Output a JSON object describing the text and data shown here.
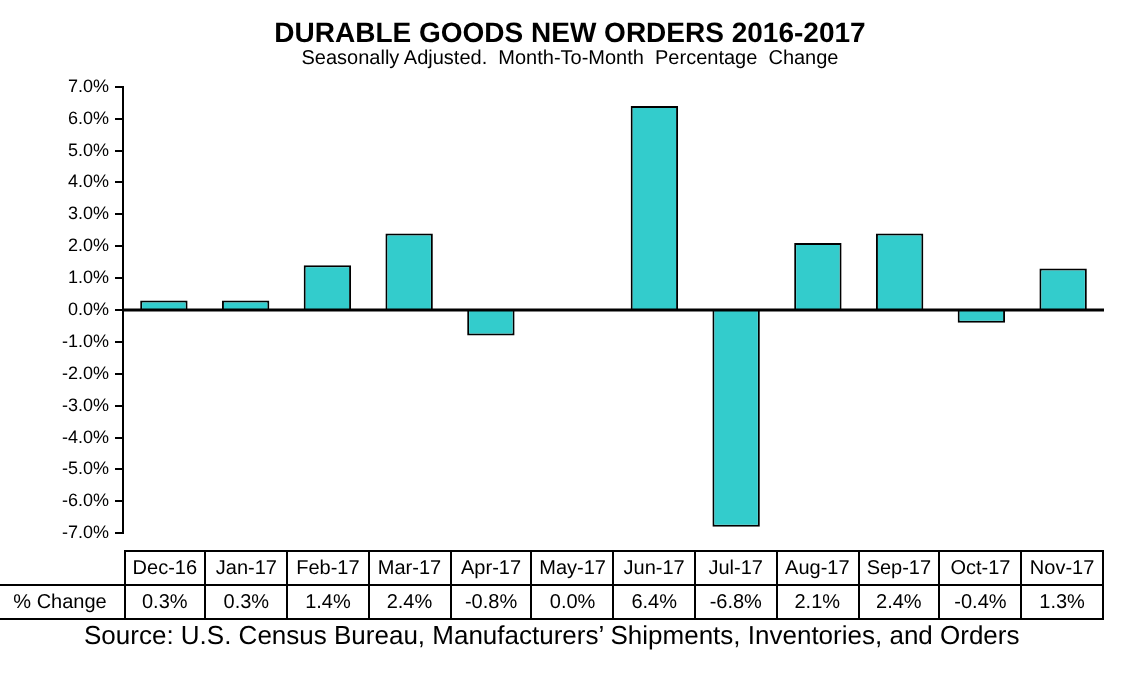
{
  "chart_data": {
    "type": "bar",
    "title": "DURABLE GOODS NEW ORDERS 2016-2017",
    "subtitle": "Seasonally Adjusted.  Month-To-Month  Percentage  Change",
    "categories": [
      "Dec-16",
      "Jan-17",
      "Feb-17",
      "Mar-17",
      "Apr-17",
      "May-17",
      "Jun-17",
      "Jul-17",
      "Aug-17",
      "Sep-17",
      "Oct-17",
      "Nov-17"
    ],
    "series": [
      {
        "name": "% Change",
        "color": "#33cccc",
        "values": [
          0.3,
          0.3,
          1.4,
          2.4,
          -0.8,
          0.0,
          6.4,
          -6.8,
          2.1,
          2.4,
          -0.4,
          1.3
        ],
        "value_labels": [
          "0.3%",
          "0.3%",
          "1.4%",
          "2.4%",
          "-0.8%",
          "0.0%",
          "6.4%",
          "-6.8%",
          "2.1%",
          "2.4%",
          "-0.4%",
          "1.3%"
        ]
      }
    ],
    "ylim": [
      -7,
      7
    ],
    "yticks": [
      {
        "value": -7,
        "label": "-7.0%"
      },
      {
        "value": -6,
        "label": "-6.0%"
      },
      {
        "value": -5,
        "label": "-5.0%"
      },
      {
        "value": -4,
        "label": "-4.0%"
      },
      {
        "value": -3,
        "label": "-3.0%"
      },
      {
        "value": -2,
        "label": "-2.0%"
      },
      {
        "value": -1,
        "label": "-1.0%"
      },
      {
        "value": 0,
        "label": "0.0%"
      },
      {
        "value": 1,
        "label": "1.0%"
      },
      {
        "value": 2,
        "label": "2.0%"
      },
      {
        "value": 3,
        "label": "3.0%"
      },
      {
        "value": 4,
        "label": "4.0%"
      },
      {
        "value": 5,
        "label": "5.0%"
      },
      {
        "value": 6,
        "label": "6.0%"
      },
      {
        "value": 7,
        "label": "7.0%"
      }
    ],
    "grid": false,
    "legend": false,
    "ref_lines": [
      {
        "axis": "y",
        "value": 0,
        "color": "#000000"
      }
    ],
    "annotations": [
      "Source: U.S. Census Bureau, Manufacturers’ Shipments, Inventories, and Orders"
    ]
  }
}
